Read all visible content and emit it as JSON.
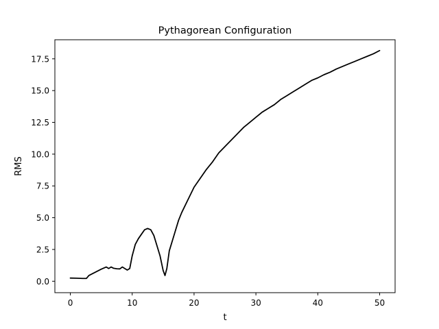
{
  "chart_data": {
    "type": "line",
    "title": "Pythagorean Configuration",
    "xlabel": "t",
    "ylabel": "RMS",
    "xlim": [
      -2.5,
      52.5
    ],
    "ylim": [
      -0.9,
      19.0
    ],
    "xticks": [
      0,
      10,
      20,
      30,
      40,
      50
    ],
    "xtick_labels": [
      "0",
      "10",
      "20",
      "30",
      "40",
      "50"
    ],
    "yticks": [
      0.0,
      2.5,
      5.0,
      7.5,
      10.0,
      12.5,
      15.0,
      17.5
    ],
    "ytick_labels": [
      "0.0",
      "2.5",
      "5.0",
      "7.5",
      "10.0",
      "12.5",
      "15.0",
      "17.5"
    ],
    "grid": false,
    "line_color": "#000000",
    "series": [
      {
        "x": [
          0,
          1,
          2,
          2.6,
          3,
          4,
          5,
          5.8,
          6.2,
          6.6,
          7,
          7.5,
          8,
          8.4,
          8.8,
          9.2,
          9.6,
          10,
          10.5,
          11,
          11.5,
          12,
          12.5,
          13,
          13.5,
          14,
          14.5,
          15,
          15.3,
          15.6,
          16,
          16.5,
          17,
          17.5,
          18,
          19,
          20,
          21,
          22,
          23,
          24,
          25,
          26,
          27,
          28,
          29,
          30,
          31,
          32,
          33,
          34,
          35,
          36,
          37,
          38,
          39,
          40,
          41,
          42,
          43,
          44,
          45,
          46,
          47,
          48,
          49,
          50
        ],
        "y": [
          0.25,
          0.24,
          0.22,
          0.22,
          0.45,
          0.7,
          0.95,
          1.12,
          1.0,
          1.12,
          1.02,
          0.98,
          0.97,
          1.12,
          1.0,
          0.88,
          1.0,
          2.0,
          2.9,
          3.35,
          3.7,
          4.05,
          4.15,
          4.05,
          3.6,
          2.8,
          2.0,
          0.85,
          0.45,
          1.0,
          2.4,
          3.2,
          4.0,
          4.8,
          5.4,
          6.4,
          7.4,
          8.1,
          8.8,
          9.4,
          10.1,
          10.6,
          11.1,
          11.6,
          12.1,
          12.5,
          12.9,
          13.3,
          13.6,
          13.9,
          14.3,
          14.6,
          14.9,
          15.2,
          15.5,
          15.8,
          16.0,
          16.25,
          16.45,
          16.7,
          16.9,
          17.1,
          17.3,
          17.5,
          17.7,
          17.9,
          18.15
        ]
      }
    ]
  }
}
